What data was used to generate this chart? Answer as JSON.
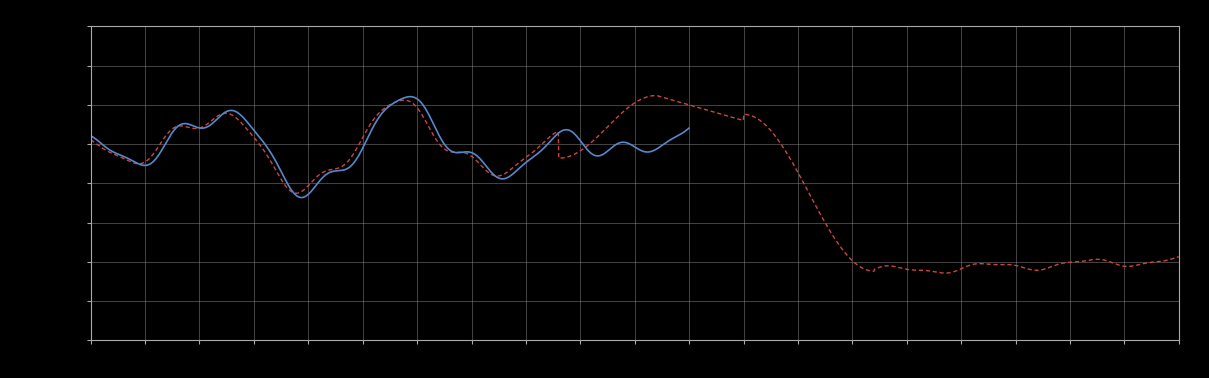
{
  "background_color": "#000000",
  "plot_bg_color": "#000000",
  "grid_color": "#aaaaaa",
  "blue_color": "#5588cc",
  "red_color": "#cc4444",
  "fig_width": 12.09,
  "fig_height": 3.78,
  "dpi": 100,
  "xlim": [
    0,
    100
  ],
  "ylim": [
    0,
    10
  ],
  "n_gridlines_x": 20,
  "n_gridlines_y": 8
}
